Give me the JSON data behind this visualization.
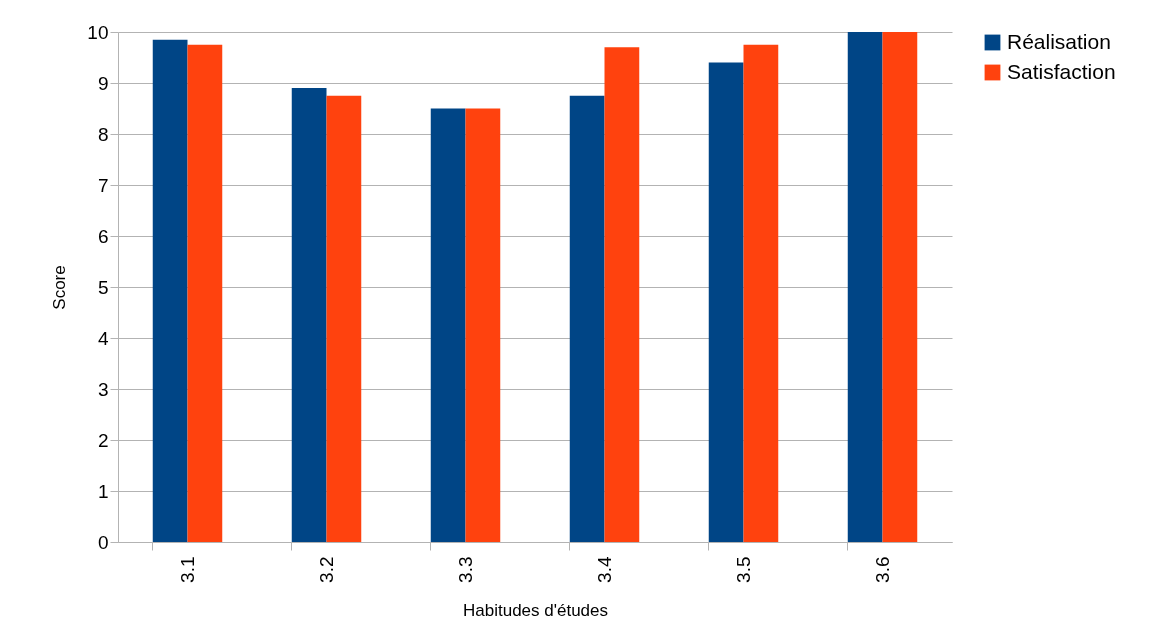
{
  "chart_data": {
    "type": "bar",
    "xlabel": "Habitudes d'études",
    "ylabel": "Score",
    "categories": [
      "3.1",
      "3.2",
      "3.3",
      "3.4",
      "3.5",
      "3.6"
    ],
    "series": [
      {
        "name": "Réalisation",
        "color": "#004586",
        "values": [
          9.85,
          8.9,
          8.5,
          8.75,
          9.4,
          10
        ]
      },
      {
        "name": "Satisfaction",
        "color": "#ff420e",
        "values": [
          9.75,
          8.75,
          8.5,
          9.7,
          9.75,
          10
        ]
      }
    ],
    "ylim": [
      0,
      10
    ],
    "yticks": [
      0,
      1,
      2,
      3,
      4,
      5,
      6,
      7,
      8,
      9,
      10
    ],
    "grid": "y",
    "legend": "right"
  }
}
